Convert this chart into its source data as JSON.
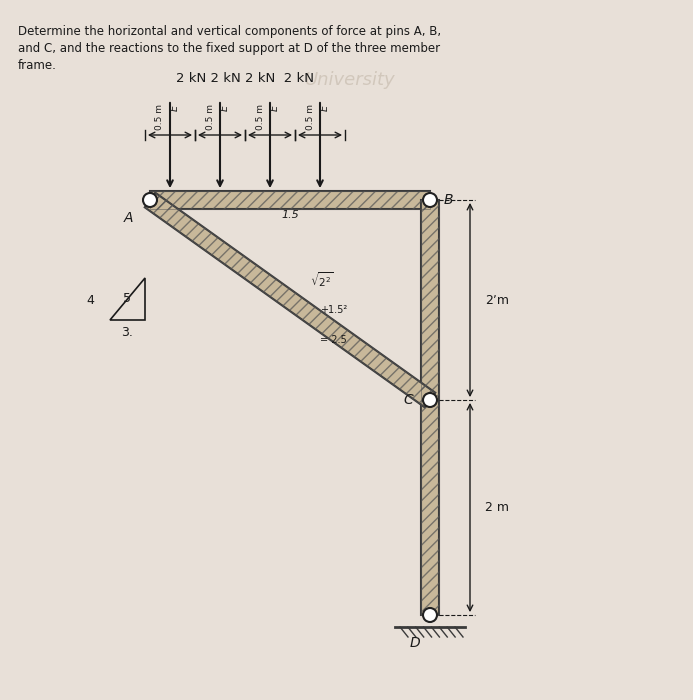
{
  "bg_color": "#e8e0d8",
  "text_color": "#1a1a1a",
  "title_line1": "Determine the horizontal and vertical components of force at pins A, B,",
  "title_line2": "and C, and the reactions to the fixed support at D of the three member",
  "title_line3": "frame.",
  "loads_label": "2 kN 2 kN 2 kN  2 kN",
  "spacing_label": "0.5 m",
  "dim_label_15": "1.5",
  "dim_label_2m_upper": "2ʼm",
  "dim_label_2m_lower": "2 m",
  "label_A": "A",
  "label_B": "B",
  "label_C": "C",
  "label_D": "D",
  "triangle_sides": [
    "4",
    "5",
    "3."
  ],
  "diagonal_label1": "√2²",
  "diagonal_label2": "+1.5²",
  "diagonal_label3": "= 2.5",
  "member_color": "#3a3a3a",
  "hatch_color": "#555555",
  "pin_color": "#222222",
  "arrow_color": "#1a1a1a",
  "frame_lw": 8,
  "member_lw": 7
}
